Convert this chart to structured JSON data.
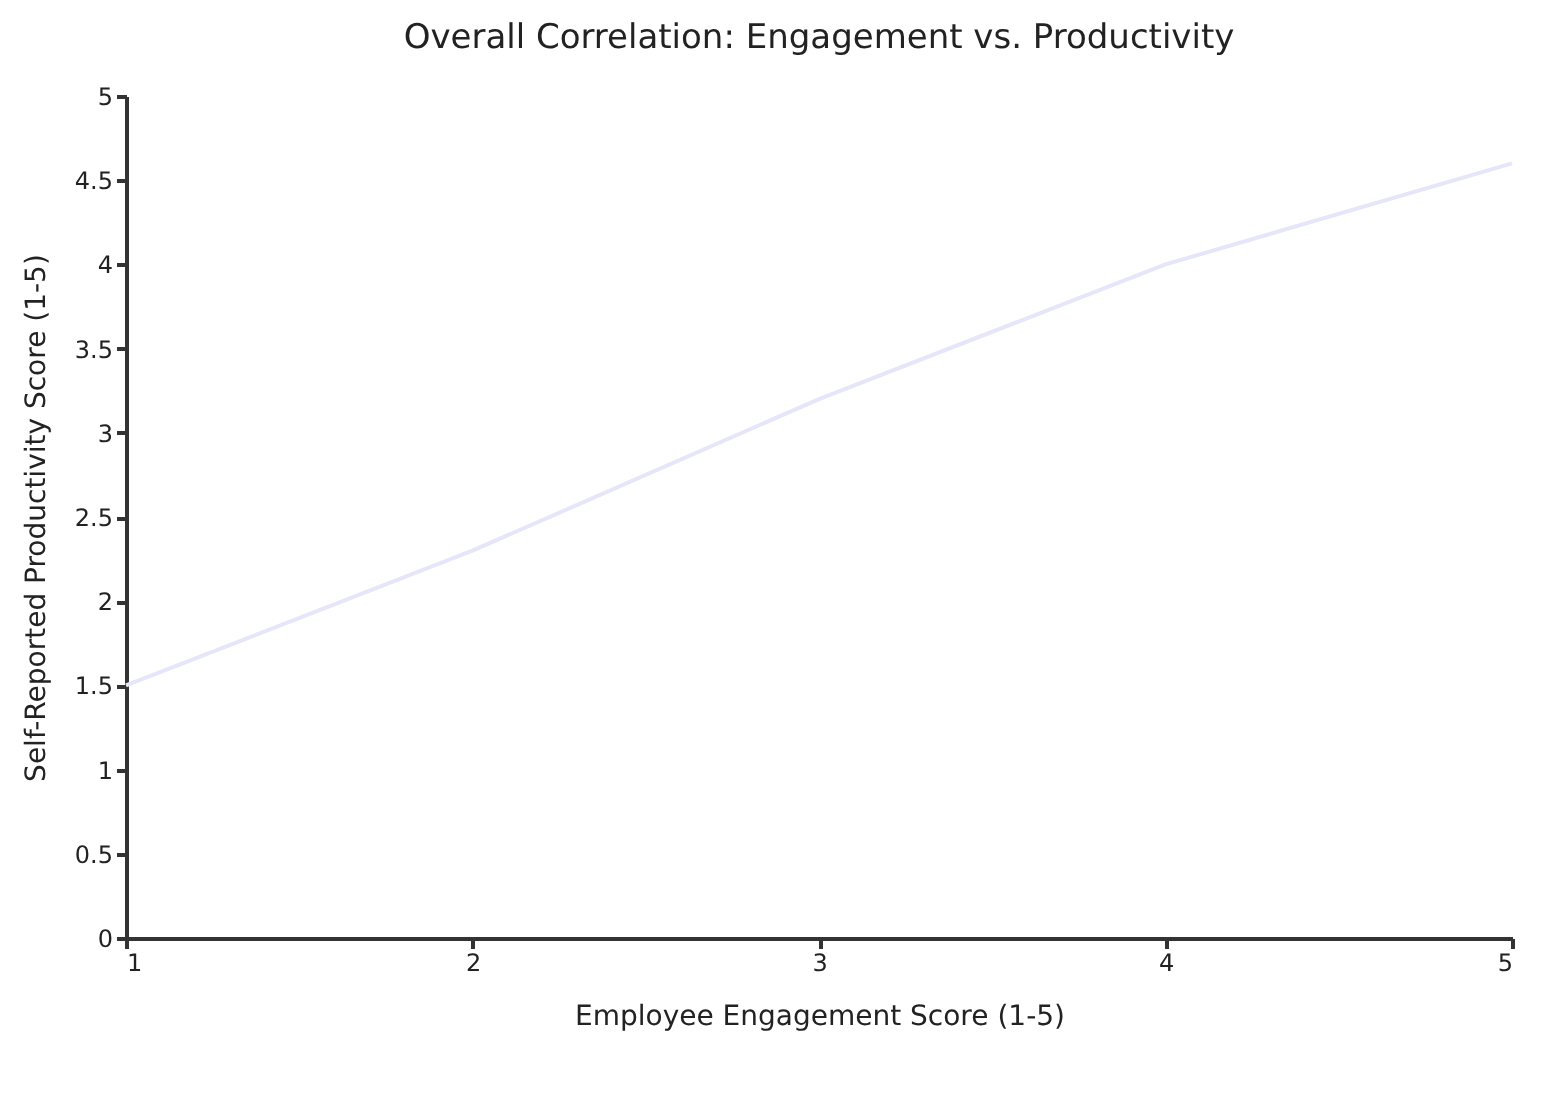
{
  "chart_data": {
    "type": "line",
    "title": "Overall Correlation: Engagement vs. Productivity",
    "xlabel": "Employee Engagement Score (1-5)",
    "ylabel": "Self-Reported Productivity Score (1-5)",
    "x": [
      1,
      2,
      3,
      4,
      5
    ],
    "series": [
      {
        "color": "#e6e6fa",
        "values": [
          1.5,
          2.3,
          3.2,
          4.0,
          4.6
        ]
      }
    ],
    "xlim": [
      1,
      5
    ],
    "xticks": [
      1,
      2,
      3,
      4,
      5
    ],
    "ylim": [
      0,
      5
    ],
    "yticks": [
      0,
      0.5,
      1,
      1.5,
      2,
      2.5,
      3,
      3.5,
      4,
      4.5,
      5
    ],
    "grid": false,
    "marker": "none",
    "line_style": "solid"
  }
}
